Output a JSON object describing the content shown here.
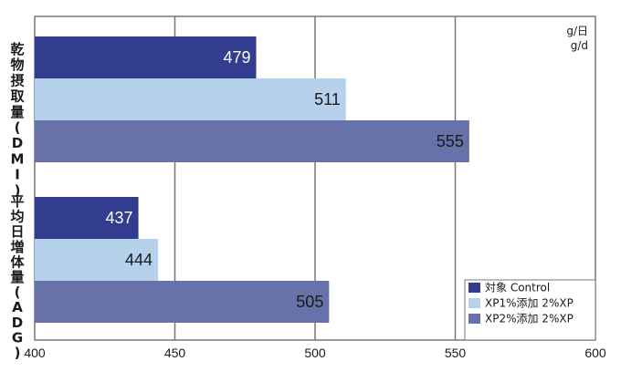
{
  "chart_data": {
    "type": "bar",
    "orientation": "horizontal",
    "categories": [
      "乾物摂取量(DMI)",
      "平均日増体量(ADG)"
    ],
    "series": [
      {
        "name": "対象 Control",
        "values": [
          479,
          437
        ],
        "color": "#333d8f",
        "label_color": "#ffffff"
      },
      {
        "name": "XP1%添加 2%XP",
        "values": [
          511,
          444
        ],
        "color": "#b5d1ec",
        "label_color": "#1a1a1a"
      },
      {
        "name": "XP2%添加 2%XP",
        "values": [
          555,
          505
        ],
        "color": "#6772aa",
        "label_color": "#1a1a1a"
      }
    ],
    "xlim": [
      400,
      600
    ],
    "xticks": [
      "400",
      "450",
      "500",
      "550",
      "600"
    ],
    "units": [
      "g/日",
      "g/d"
    ],
    "grid": true,
    "legend_position": "bottom-right"
  }
}
